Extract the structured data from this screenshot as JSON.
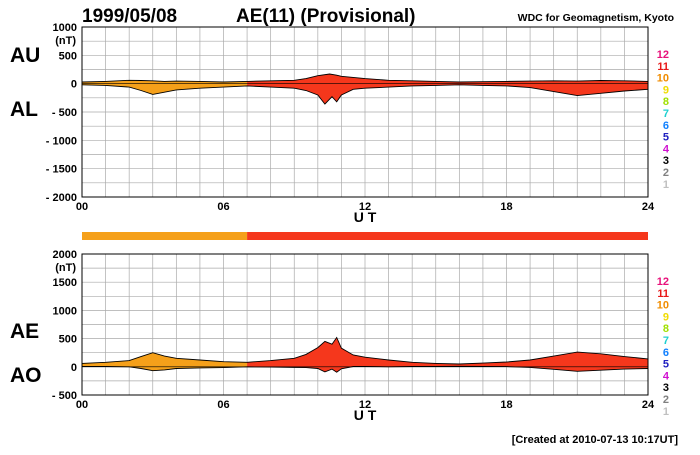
{
  "header": {
    "date": "1999/05/08",
    "title": "AE(11) (Provisional)",
    "source": "WDC for Geomagnetism, Kyoto"
  },
  "footer": {
    "created": "[Created at 2010-07-13 10:17UT]"
  },
  "colors": {
    "early": "#f5a01a",
    "late": "#f5371c",
    "outline": "#000000",
    "grid": "#aaaaaa"
  },
  "legend": [
    {
      "label": "12",
      "color": "#e8107a"
    },
    {
      "label": "11",
      "color": "#e81818"
    },
    {
      "label": "10",
      "color": "#f08c00"
    },
    {
      "label": "9",
      "color": "#f0dc00"
    },
    {
      "label": "8",
      "color": "#a0e000"
    },
    {
      "label": "7",
      "color": "#20d0d0"
    },
    {
      "label": "6",
      "color": "#1080ff"
    },
    {
      "label": "5",
      "color": "#2020c0"
    },
    {
      "label": "4",
      "color": "#d010d0"
    },
    {
      "label": "3",
      "color": "#000000"
    },
    {
      "label": "2",
      "color": "#808080"
    },
    {
      "label": "1",
      "color": "#c0c0c0"
    }
  ],
  "chart_data": [
    {
      "type": "area",
      "panel": "AU/AL",
      "left_labels": [
        "AU",
        "AL"
      ],
      "unit": "(nT)",
      "xlabel": "U T",
      "x_ticks": [
        "00",
        "06",
        "12",
        "18",
        "24"
      ],
      "xlim": [
        0,
        24
      ],
      "ylim": [
        -2000,
        1000
      ],
      "y_ticks": [
        1000,
        500,
        0,
        -500,
        -1000,
        -1500,
        -2000
      ],
      "y_tick_labels": [
        "1000",
        "500",
        "0",
        "- 500",
        "- 1000",
        "- 1500",
        "- 2000"
      ],
      "grid": true,
      "color_split_hour": 7,
      "series": [
        {
          "name": "AU",
          "x": [
            0,
            1,
            2,
            2.5,
            3,
            3.5,
            4,
            5,
            6,
            7,
            8,
            9,
            9.5,
            10,
            10.5,
            10.8,
            11,
            11.5,
            12,
            13,
            14,
            15,
            16,
            17,
            18,
            19,
            20,
            21,
            22,
            23,
            24
          ],
          "values": [
            30,
            40,
            60,
            55,
            50,
            40,
            45,
            40,
            30,
            40,
            50,
            60,
            90,
            140,
            170,
            150,
            130,
            110,
            90,
            60,
            50,
            40,
            30,
            35,
            40,
            45,
            50,
            45,
            55,
            50,
            40
          ]
        },
        {
          "name": "AL",
          "x": [
            0,
            1,
            2,
            2.5,
            3,
            3.5,
            4,
            5,
            6,
            7,
            8,
            9,
            9.5,
            10,
            10.3,
            10.6,
            10.8,
            11,
            11.5,
            12,
            13,
            14,
            15,
            16,
            17,
            18,
            19,
            20,
            21,
            22,
            23,
            24
          ],
          "values": [
            -20,
            -30,
            -60,
            -120,
            -190,
            -150,
            -110,
            -80,
            -60,
            -40,
            -60,
            -80,
            -120,
            -200,
            -360,
            -230,
            -320,
            -200,
            -100,
            -80,
            -60,
            -40,
            -30,
            -20,
            -30,
            -40,
            -70,
            -140,
            -210,
            -170,
            -130,
            -100
          ]
        }
      ]
    },
    {
      "type": "area",
      "panel": "AE/AO",
      "left_labels": [
        "AE",
        "AO"
      ],
      "unit": "(nT)",
      "xlabel": "U T",
      "x_ticks": [
        "00",
        "06",
        "12",
        "18",
        "24"
      ],
      "xlim": [
        0,
        24
      ],
      "ylim": [
        -500,
        2000
      ],
      "y_ticks": [
        2000,
        1500,
        1000,
        500,
        0,
        -500
      ],
      "y_tick_labels": [
        "2000",
        "1500",
        "1000",
        "500",
        "0",
        "- 500"
      ],
      "grid": true,
      "color_split_hour": 7,
      "series": [
        {
          "name": "AE",
          "x": [
            0,
            1,
            2,
            2.5,
            3,
            3.5,
            4,
            5,
            6,
            7,
            8,
            9,
            9.5,
            10,
            10.3,
            10.6,
            10.8,
            11,
            11.5,
            12,
            13,
            14,
            15,
            16,
            17,
            18,
            19,
            20,
            21,
            22,
            23,
            24
          ],
          "values": [
            60,
            80,
            110,
            180,
            250,
            190,
            150,
            120,
            90,
            80,
            110,
            150,
            220,
            340,
            450,
            400,
            520,
            330,
            210,
            170,
            120,
            80,
            60,
            50,
            65,
            85,
            120,
            190,
            260,
            230,
            180,
            140
          ]
        },
        {
          "name": "AO",
          "x": [
            0,
            1,
            2,
            2.5,
            3,
            3.5,
            4,
            5,
            6,
            7,
            8,
            9,
            9.5,
            10,
            10.3,
            10.6,
            10.8,
            11,
            11.5,
            12,
            13,
            14,
            15,
            16,
            17,
            18,
            19,
            20,
            21,
            22,
            23,
            24
          ],
          "values": [
            5,
            5,
            0,
            -30,
            -70,
            -55,
            -30,
            -20,
            -15,
            0,
            -5,
            -10,
            -15,
            -30,
            -90,
            -40,
            -95,
            -35,
            5,
            5,
            0,
            5,
            5,
            8,
            5,
            3,
            -10,
            -45,
            -80,
            -60,
            -40,
            -30
          ]
        }
      ]
    }
  ]
}
